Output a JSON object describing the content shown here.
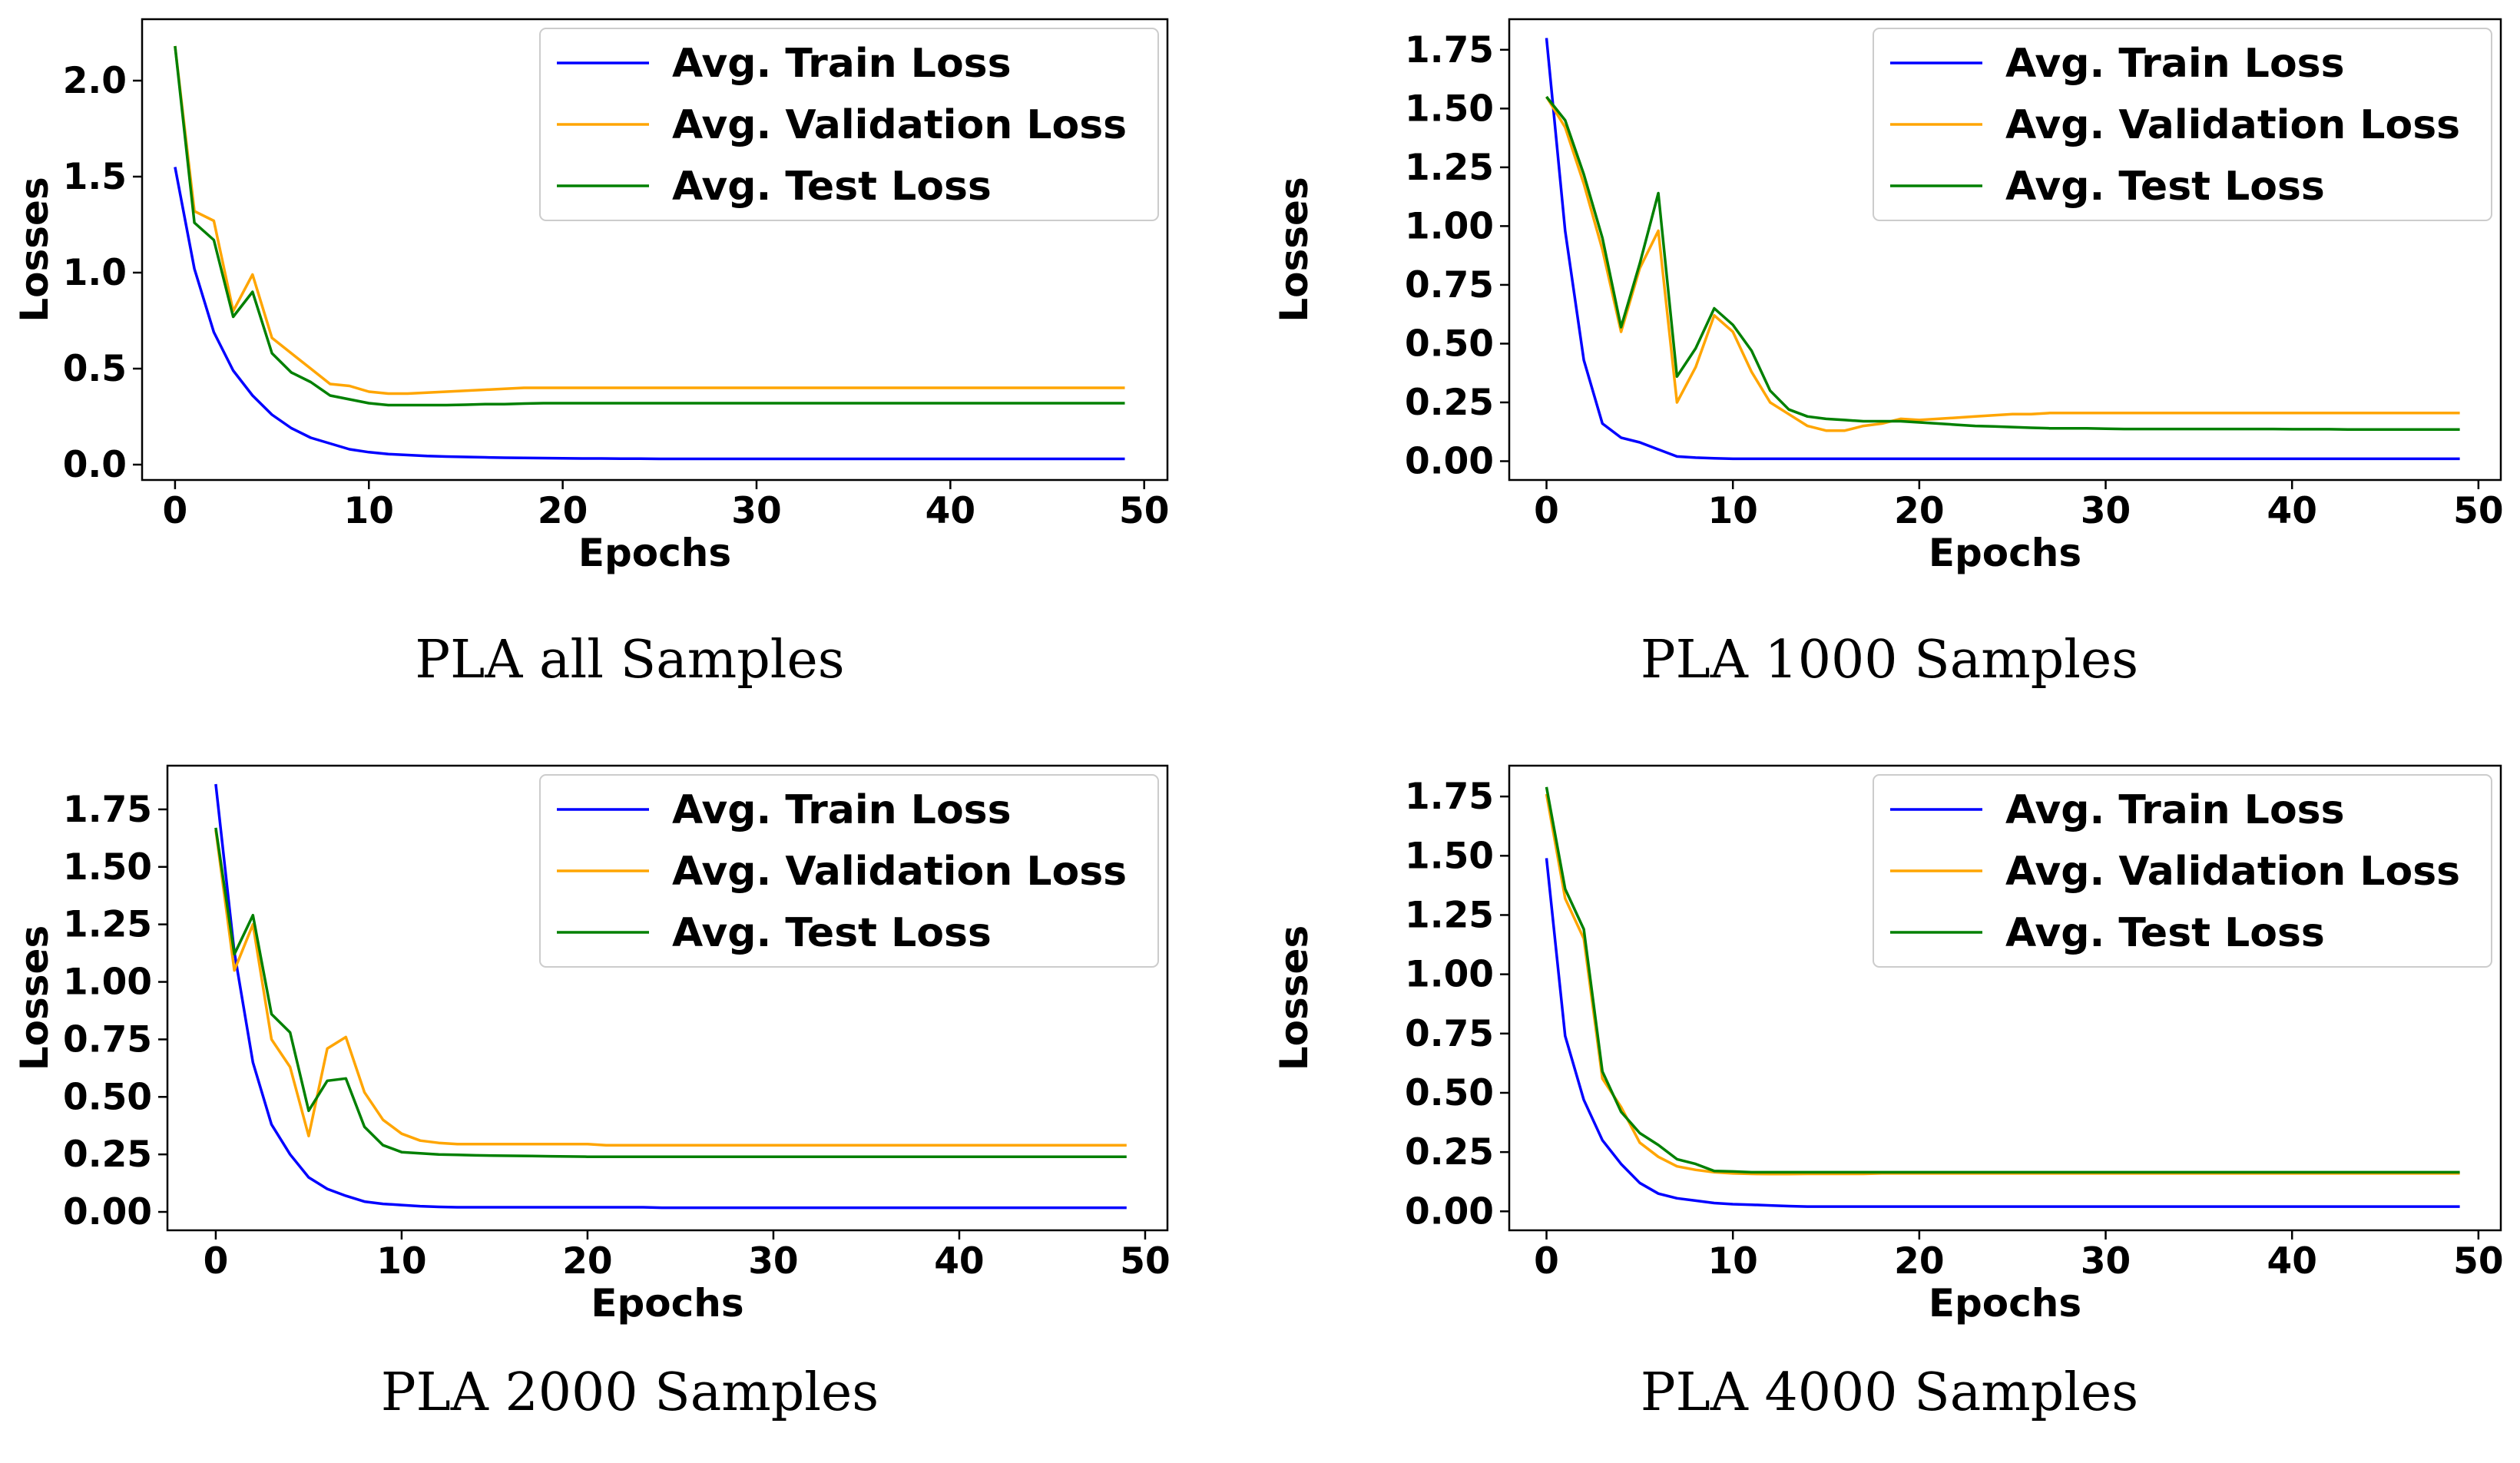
{
  "chart_data": [
    {
      "type": "line",
      "caption": "PLA all Samples",
      "xlabel": "Epochs",
      "ylabel": "Losses",
      "xlim": [
        -1.7,
        51.2
      ],
      "ylim": [
        -0.08,
        2.32
      ],
      "xticks": [
        0,
        10,
        20,
        30,
        40,
        50
      ],
      "xtick_labels": [
        "0",
        "10",
        "20",
        "30",
        "40",
        "50"
      ],
      "yticks": [
        0,
        0.5,
        1.0,
        1.5,
        2.0
      ],
      "ytick_labels": [
        "0.0",
        "0.5",
        "1.0",
        "1.5",
        "2.0"
      ],
      "legend_position": "upper-right",
      "x": [
        0,
        1,
        2,
        3,
        4,
        5,
        6,
        7,
        8,
        9,
        10,
        11,
        12,
        13,
        14,
        15,
        16,
        17,
        18,
        19,
        20,
        21,
        22,
        23,
        24,
        25,
        26,
        27,
        28,
        29,
        30,
        31,
        32,
        33,
        34,
        35,
        36,
        37,
        38,
        39,
        40,
        41,
        42,
        43,
        44,
        45,
        46,
        47,
        48,
        49
      ],
      "series": [
        {
          "name": "Avg. Train Loss",
          "color": "#0000ff",
          "values": [
            1.55,
            1.02,
            0.69,
            0.49,
            0.36,
            0.26,
            0.19,
            0.14,
            0.11,
            0.08,
            0.065,
            0.055,
            0.05,
            0.045,
            0.042,
            0.04,
            0.038,
            0.036,
            0.035,
            0.034,
            0.033,
            0.032,
            0.032,
            0.031,
            0.031,
            0.03,
            0.03,
            0.03,
            0.03,
            0.03,
            0.03,
            0.03,
            0.03,
            0.03,
            0.03,
            0.03,
            0.03,
            0.03,
            0.03,
            0.03,
            0.03,
            0.03,
            0.03,
            0.03,
            0.03,
            0.03,
            0.03,
            0.03,
            0.03,
            0.03
          ]
        },
        {
          "name": "Avg. Validation Loss",
          "color": "#ffa500",
          "values": [
            2.18,
            1.32,
            1.27,
            0.8,
            0.99,
            0.66,
            0.58,
            0.5,
            0.42,
            0.41,
            0.38,
            0.37,
            0.37,
            0.375,
            0.38,
            0.385,
            0.39,
            0.395,
            0.4,
            0.4,
            0.4,
            0.4,
            0.4,
            0.4,
            0.4,
            0.4,
            0.4,
            0.4,
            0.4,
            0.4,
            0.4,
            0.4,
            0.4,
            0.4,
            0.4,
            0.4,
            0.4,
            0.4,
            0.4,
            0.4,
            0.4,
            0.4,
            0.4,
            0.4,
            0.4,
            0.4,
            0.4,
            0.4,
            0.4,
            0.4
          ]
        },
        {
          "name": "Avg. Test Loss",
          "color": "#008000",
          "values": [
            2.18,
            1.26,
            1.17,
            0.77,
            0.9,
            0.58,
            0.48,
            0.43,
            0.36,
            0.34,
            0.32,
            0.31,
            0.31,
            0.31,
            0.31,
            0.312,
            0.315,
            0.315,
            0.318,
            0.32,
            0.32,
            0.32,
            0.32,
            0.32,
            0.32,
            0.32,
            0.32,
            0.32,
            0.32,
            0.32,
            0.32,
            0.32,
            0.32,
            0.32,
            0.32,
            0.32,
            0.32,
            0.32,
            0.32,
            0.32,
            0.32,
            0.32,
            0.32,
            0.32,
            0.32,
            0.32,
            0.32,
            0.32,
            0.32,
            0.32
          ]
        }
      ]
    },
    {
      "type": "line",
      "caption": "PLA 1000 Samples",
      "xlabel": "Epochs",
      "ylabel": "Losses",
      "xlim": [
        -2.0,
        51.2
      ],
      "ylim": [
        -0.08,
        1.88
      ],
      "xticks": [
        0,
        10,
        20,
        30,
        40,
        50
      ],
      "xtick_labels": [
        "0",
        "10",
        "20",
        "30",
        "40",
        "50"
      ],
      "yticks": [
        0,
        0.25,
        0.5,
        0.75,
        1.0,
        1.25,
        1.5,
        1.75
      ],
      "ytick_labels": [
        "0.00",
        "0.25",
        "0.50",
        "0.75",
        "1.00",
        "1.25",
        "1.50",
        "1.75"
      ],
      "legend_position": "upper-right",
      "x": [
        0,
        1,
        2,
        3,
        4,
        5,
        6,
        7,
        8,
        9,
        10,
        11,
        12,
        13,
        14,
        15,
        16,
        17,
        18,
        19,
        20,
        21,
        22,
        23,
        24,
        25,
        26,
        27,
        28,
        29,
        30,
        31,
        32,
        33,
        34,
        35,
        36,
        37,
        38,
        39,
        40,
        41,
        42,
        43,
        44,
        45,
        46,
        47,
        48,
        49
      ],
      "series": [
        {
          "name": "Avg. Train Loss",
          "color": "#0000ff",
          "values": [
            1.8,
            0.98,
            0.43,
            0.16,
            0.1,
            0.08,
            0.05,
            0.02,
            0.015,
            0.012,
            0.01,
            0.01,
            0.01,
            0.01,
            0.01,
            0.01,
            0.01,
            0.01,
            0.01,
            0.01,
            0.01,
            0.01,
            0.01,
            0.01,
            0.01,
            0.01,
            0.01,
            0.01,
            0.01,
            0.01,
            0.01,
            0.01,
            0.01,
            0.01,
            0.01,
            0.01,
            0.01,
            0.01,
            0.01,
            0.01,
            0.01,
            0.01,
            0.01,
            0.01,
            0.01,
            0.01,
            0.01,
            0.01,
            0.01,
            0.01
          ]
        },
        {
          "name": "Avg. Validation Loss",
          "color": "#ffa500",
          "values": [
            1.55,
            1.42,
            1.18,
            0.9,
            0.55,
            0.82,
            0.98,
            0.25,
            0.4,
            0.62,
            0.55,
            0.38,
            0.25,
            0.2,
            0.15,
            0.13,
            0.13,
            0.15,
            0.16,
            0.18,
            0.175,
            0.18,
            0.185,
            0.19,
            0.195,
            0.2,
            0.2,
            0.205,
            0.205,
            0.205,
            0.205,
            0.205,
            0.205,
            0.205,
            0.205,
            0.205,
            0.205,
            0.205,
            0.205,
            0.205,
            0.205,
            0.205,
            0.205,
            0.205,
            0.205,
            0.205,
            0.205,
            0.205,
            0.205,
            0.205
          ]
        },
        {
          "name": "Avg. Test Loss",
          "color": "#008000",
          "values": [
            1.55,
            1.45,
            1.22,
            0.95,
            0.57,
            0.84,
            1.14,
            0.36,
            0.48,
            0.65,
            0.58,
            0.47,
            0.3,
            0.22,
            0.19,
            0.18,
            0.175,
            0.17,
            0.17,
            0.17,
            0.165,
            0.16,
            0.155,
            0.15,
            0.148,
            0.145,
            0.142,
            0.14,
            0.14,
            0.14,
            0.138,
            0.137,
            0.137,
            0.137,
            0.137,
            0.137,
            0.137,
            0.137,
            0.137,
            0.137,
            0.136,
            0.136,
            0.136,
            0.135,
            0.135,
            0.135,
            0.135,
            0.135,
            0.135,
            0.135
          ]
        }
      ]
    },
    {
      "type": "line",
      "caption": "PLA 2000 Samples",
      "xlabel": "Epochs",
      "ylabel": "Losses",
      "xlim": [
        -2.6,
        51.2
      ],
      "ylim": [
        -0.08,
        1.94
      ],
      "xticks": [
        0,
        10,
        20,
        30,
        40,
        50
      ],
      "xtick_labels": [
        "0",
        "10",
        "20",
        "30",
        "40",
        "50"
      ],
      "yticks": [
        0,
        0.25,
        0.5,
        0.75,
        1.0,
        1.25,
        1.5,
        1.75
      ],
      "ytick_labels": [
        "0.00",
        "0.25",
        "0.50",
        "0.75",
        "1.00",
        "1.25",
        "1.50",
        "1.75"
      ],
      "legend_position": "upper-right",
      "x": [
        0,
        1,
        2,
        3,
        4,
        5,
        6,
        7,
        8,
        9,
        10,
        11,
        12,
        13,
        14,
        15,
        16,
        17,
        18,
        19,
        20,
        21,
        22,
        23,
        24,
        25,
        26,
        27,
        28,
        29,
        30,
        31,
        32,
        33,
        34,
        35,
        36,
        37,
        38,
        39,
        40,
        41,
        42,
        43,
        44,
        45,
        46,
        47,
        48,
        49
      ],
      "series": [
        {
          "name": "Avg. Train Loss",
          "color": "#0000ff",
          "values": [
            1.86,
            1.13,
            0.65,
            0.38,
            0.25,
            0.15,
            0.1,
            0.07,
            0.045,
            0.035,
            0.03,
            0.025,
            0.022,
            0.02,
            0.02,
            0.02,
            0.02,
            0.02,
            0.02,
            0.02,
            0.02,
            0.02,
            0.02,
            0.02,
            0.018,
            0.018,
            0.018,
            0.018,
            0.018,
            0.018,
            0.018,
            0.018,
            0.018,
            0.018,
            0.018,
            0.018,
            0.018,
            0.018,
            0.018,
            0.018,
            0.018,
            0.018,
            0.018,
            0.018,
            0.018,
            0.018,
            0.018,
            0.018,
            0.018,
            0.018
          ]
        },
        {
          "name": "Avg. Validation Loss",
          "color": "#ffa500",
          "values": [
            1.66,
            1.05,
            1.25,
            0.75,
            0.63,
            0.33,
            0.71,
            0.76,
            0.52,
            0.4,
            0.34,
            0.31,
            0.3,
            0.295,
            0.295,
            0.295,
            0.295,
            0.295,
            0.295,
            0.295,
            0.295,
            0.29,
            0.29,
            0.29,
            0.29,
            0.29,
            0.29,
            0.29,
            0.29,
            0.29,
            0.29,
            0.29,
            0.29,
            0.29,
            0.29,
            0.29,
            0.29,
            0.29,
            0.29,
            0.29,
            0.29,
            0.29,
            0.29,
            0.29,
            0.29,
            0.29,
            0.29,
            0.29,
            0.29,
            0.29
          ]
        },
        {
          "name": "Avg. Test Loss",
          "color": "#008000",
          "values": [
            1.67,
            1.12,
            1.29,
            0.86,
            0.78,
            0.44,
            0.57,
            0.58,
            0.37,
            0.29,
            0.26,
            0.255,
            0.25,
            0.248,
            0.246,
            0.245,
            0.244,
            0.243,
            0.242,
            0.241,
            0.24,
            0.24,
            0.24,
            0.24,
            0.24,
            0.24,
            0.24,
            0.24,
            0.24,
            0.24,
            0.24,
            0.24,
            0.24,
            0.24,
            0.24,
            0.24,
            0.24,
            0.24,
            0.24,
            0.24,
            0.24,
            0.24,
            0.24,
            0.24,
            0.24,
            0.24,
            0.24,
            0.24,
            0.24,
            0.24
          ]
        }
      ]
    },
    {
      "type": "line",
      "caption": "PLA 4000 Samples",
      "xlabel": "Epochs",
      "ylabel": "Losses",
      "xlim": [
        -2.0,
        51.2
      ],
      "ylim": [
        -0.08,
        1.88
      ],
      "xticks": [
        0,
        10,
        20,
        30,
        40,
        50
      ],
      "xtick_labels": [
        "0",
        "10",
        "20",
        "30",
        "40",
        "50"
      ],
      "yticks": [
        0,
        0.25,
        0.5,
        0.75,
        1.0,
        1.25,
        1.5,
        1.75
      ],
      "ytick_labels": [
        "0.00",
        "0.25",
        "0.50",
        "0.75",
        "1.00",
        "1.25",
        "1.50",
        "1.75"
      ],
      "legend_position": "upper-right",
      "x": [
        0,
        1,
        2,
        3,
        4,
        5,
        6,
        7,
        8,
        9,
        10,
        11,
        12,
        13,
        14,
        15,
        16,
        17,
        18,
        19,
        20,
        21,
        22,
        23,
        24,
        25,
        26,
        27,
        28,
        29,
        30,
        31,
        32,
        33,
        34,
        35,
        36,
        37,
        38,
        39,
        40,
        41,
        42,
        43,
        44,
        45,
        46,
        47,
        48,
        49
      ],
      "series": [
        {
          "name": "Avg. Train Loss",
          "color": "#0000ff",
          "values": [
            1.49,
            0.74,
            0.47,
            0.3,
            0.2,
            0.12,
            0.075,
            0.055,
            0.045,
            0.035,
            0.03,
            0.028,
            0.025,
            0.022,
            0.02,
            0.02,
            0.02,
            0.02,
            0.02,
            0.02,
            0.02,
            0.02,
            0.02,
            0.02,
            0.02,
            0.02,
            0.02,
            0.02,
            0.02,
            0.02,
            0.02,
            0.02,
            0.02,
            0.02,
            0.02,
            0.02,
            0.02,
            0.02,
            0.02,
            0.02,
            0.02,
            0.02,
            0.02,
            0.02,
            0.02,
            0.02,
            0.02,
            0.02,
            0.02,
            0.02
          ]
        },
        {
          "name": "Avg. Validation Loss",
          "color": "#ffa500",
          "values": [
            1.76,
            1.32,
            1.15,
            0.56,
            0.44,
            0.29,
            0.23,
            0.19,
            0.175,
            0.165,
            0.16,
            0.158,
            0.157,
            0.157,
            0.158,
            0.158,
            0.158,
            0.158,
            0.16,
            0.16,
            0.16,
            0.16,
            0.16,
            0.16,
            0.16,
            0.16,
            0.16,
            0.16,
            0.16,
            0.16,
            0.16,
            0.16,
            0.16,
            0.16,
            0.16,
            0.16,
            0.16,
            0.16,
            0.16,
            0.16,
            0.16,
            0.16,
            0.16,
            0.16,
            0.16,
            0.16,
            0.16,
            0.16,
            0.16,
            0.16
          ]
        },
        {
          "name": "Avg. Test Loss",
          "color": "#008000",
          "values": [
            1.79,
            1.36,
            1.19,
            0.59,
            0.42,
            0.33,
            0.28,
            0.22,
            0.2,
            0.17,
            0.168,
            0.165,
            0.165,
            0.165,
            0.165,
            0.165,
            0.165,
            0.165,
            0.165,
            0.165,
            0.165,
            0.165,
            0.165,
            0.165,
            0.165,
            0.165,
            0.165,
            0.165,
            0.165,
            0.165,
            0.165,
            0.165,
            0.165,
            0.165,
            0.165,
            0.165,
            0.165,
            0.165,
            0.165,
            0.165,
            0.165,
            0.165,
            0.165,
            0.165,
            0.165,
            0.165,
            0.165,
            0.165,
            0.165,
            0.165
          ]
        }
      ]
    }
  ]
}
